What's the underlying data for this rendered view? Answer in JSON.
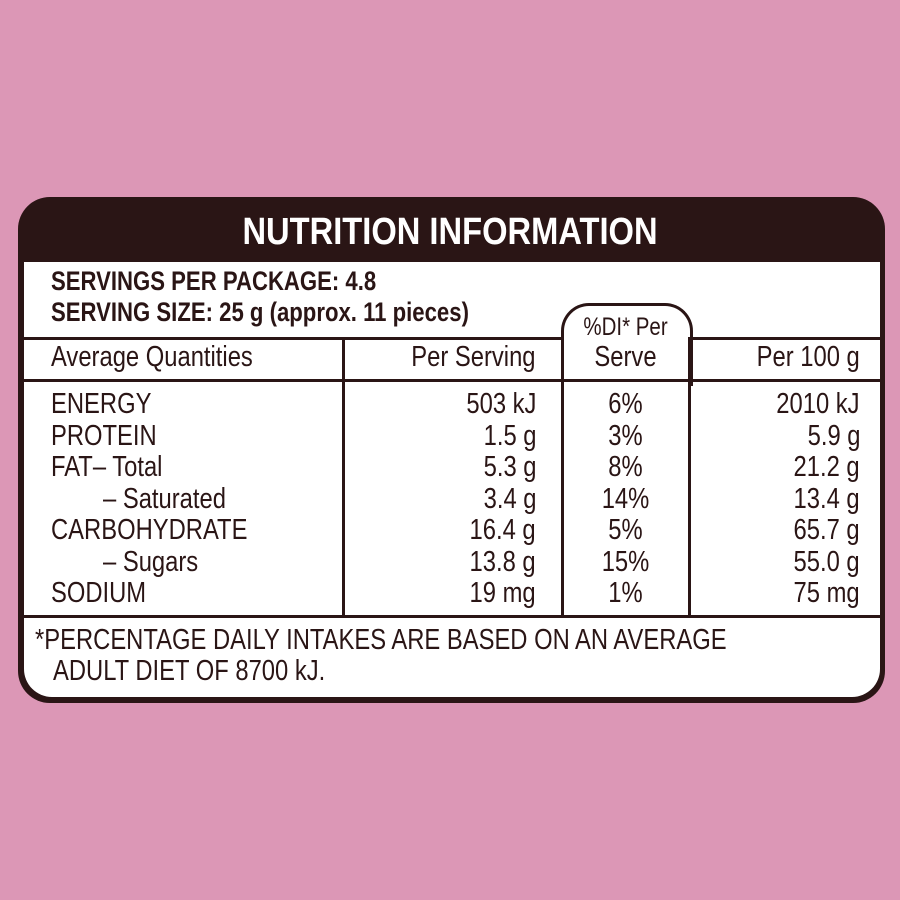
{
  "title": "NUTRITION INFORMATION",
  "servings_per_package": "SERVINGS PER PACKAGE: 4.8",
  "serving_size": "SERVING SIZE: 25 g (approx. 11 pieces)",
  "headers": {
    "quantities": "Average Quantities",
    "per_serving": "Per Serving",
    "di_line1": "%DI* Per",
    "di_line2": "Serve",
    "per_100g": "Per 100 g"
  },
  "rows": [
    {
      "name": "ENERGY",
      "per_serving": "503 kJ",
      "di": "6%",
      "per_100g": "2010 kJ"
    },
    {
      "name": "PROTEIN",
      "per_serving": "1.5 g",
      "di": "3%",
      "per_100g": "5.9 g"
    },
    {
      "name": "FAT– Total",
      "per_serving": "5.3 g",
      "di": "8%",
      "per_100g": "21.2 g"
    },
    {
      "name": "– Saturated",
      "per_serving": "3.4 g",
      "di": "14%",
      "per_100g": "13.4 g",
      "indent": true
    },
    {
      "name": "CARBOHYDRATE",
      "per_serving": "16.4 g",
      "di": "5%",
      "per_100g": "65.7 g"
    },
    {
      "name": "– Sugars",
      "per_serving": "13.8 g",
      "di": "15%",
      "per_100g": "55.0 g",
      "indent": true
    },
    {
      "name": "SODIUM",
      "per_serving": "19 mg",
      "di": "1%",
      "per_100g": "75 mg"
    }
  ],
  "footnote_line1": "*PERCENTAGE DAILY INTAKES ARE BASED ON AN AVERAGE",
  "footnote_line2": "ADULT DIET OF 8700 kJ.",
  "colors": {
    "background": "#dc97b6",
    "ink": "#2a1515"
  }
}
